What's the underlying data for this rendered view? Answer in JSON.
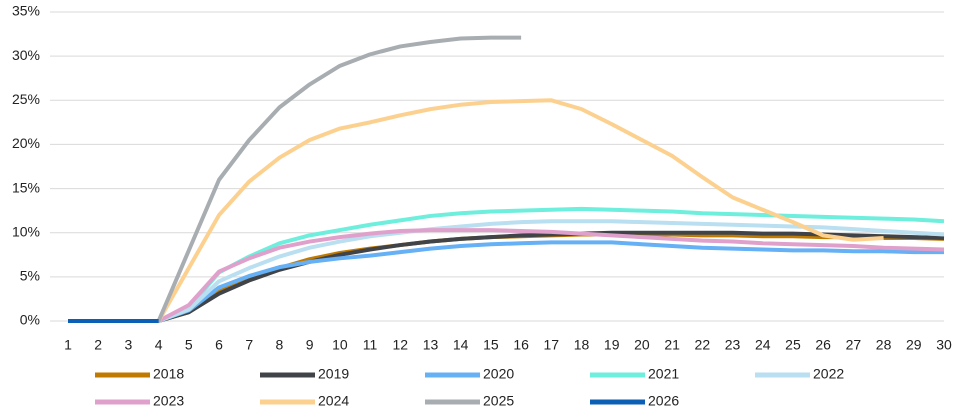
{
  "chart_data": {
    "type": "line",
    "x": [
      1,
      2,
      3,
      4,
      5,
      6,
      7,
      8,
      9,
      10,
      11,
      12,
      13,
      14,
      15,
      16,
      17,
      18,
      19,
      20,
      21,
      22,
      23,
      24,
      25,
      26,
      27,
      28,
      29,
      30
    ],
    "xlim": [
      1,
      30
    ],
    "ylim": [
      0,
      35
    ],
    "yticks": [
      {
        "value": 0,
        "label": "0%"
      },
      {
        "value": 5,
        "label": "5%"
      },
      {
        "value": 10,
        "label": "10%"
      },
      {
        "value": 15,
        "label": "15%"
      },
      {
        "value": 20,
        "label": "20%"
      },
      {
        "value": 25,
        "label": "25%"
      },
      {
        "value": 30,
        "label": "30%"
      },
      {
        "value": 35,
        "label": "35%"
      }
    ],
    "grid": true,
    "series": [
      {
        "name": "2018",
        "color": "#c07a00",
        "values": [
          0,
          0,
          0,
          0,
          1,
          3.3,
          4.8,
          6,
          7,
          7.7,
          8.2,
          8.6,
          9,
          9.3,
          9.5,
          9.6,
          9.7,
          9.8,
          9.8,
          9.8,
          9.8,
          9.7,
          9.7,
          9.6,
          9.6,
          9.5,
          9.5,
          9.4,
          9.4,
          9.3
        ]
      },
      {
        "name": "2019",
        "color": "#404448",
        "values": [
          0,
          0,
          0,
          0,
          1,
          3.1,
          4.6,
          5.8,
          6.7,
          7.5,
          8.1,
          8.6,
          9,
          9.3,
          9.5,
          9.7,
          9.8,
          9.9,
          10,
          10,
          10,
          10,
          10,
          9.9,
          9.9,
          9.8,
          9.7,
          9.6,
          9.5,
          9.4
        ]
      },
      {
        "name": "2020",
        "color": "#66b0f5",
        "values": [
          0,
          0,
          0,
          0,
          1.2,
          3.8,
          5.1,
          6.1,
          6.7,
          7.1,
          7.4,
          7.8,
          8.2,
          8.5,
          8.7,
          8.8,
          8.9,
          8.9,
          8.9,
          8.7,
          8.5,
          8.3,
          8.2,
          8.1,
          8,
          8,
          7.9,
          7.9,
          7.8,
          7.8
        ]
      },
      {
        "name": "2021",
        "color": "#6eeedd",
        "values": [
          0,
          0,
          0,
          0,
          1.5,
          5.5,
          7.3,
          8.8,
          9.7,
          10.3,
          10.9,
          11.4,
          11.9,
          12.2,
          12.4,
          12.5,
          12.6,
          12.7,
          12.6,
          12.5,
          12.4,
          12.2,
          12.1,
          12,
          11.9,
          11.8,
          11.7,
          11.6,
          11.5,
          11.3
        ]
      },
      {
        "name": "2022",
        "color": "#b9dff0",
        "values": [
          0,
          0,
          0,
          0,
          1.3,
          4.5,
          6,
          7.3,
          8.3,
          9,
          9.6,
          10,
          10.4,
          10.7,
          11,
          11.2,
          11.3,
          11.3,
          11.3,
          11.2,
          11.1,
          11,
          10.9,
          10.8,
          10.7,
          10.6,
          10.4,
          10.2,
          10,
          9.8
        ]
      },
      {
        "name": "2023",
        "color": "#e0a0cc",
        "values": [
          0,
          0,
          0,
          0,
          1.8,
          5.6,
          7.1,
          8.3,
          9,
          9.5,
          9.9,
          10.2,
          10.3,
          10.3,
          10.3,
          10.2,
          10.1,
          9.9,
          9.7,
          9.5,
          9.3,
          9.1,
          9,
          8.8,
          8.7,
          8.6,
          8.5,
          8.3,
          8.2,
          8.1
        ]
      },
      {
        "name": "2024",
        "color": "#fcd190",
        "values": [
          0,
          0,
          0,
          0,
          6,
          12,
          15.8,
          18.5,
          20.5,
          21.8,
          22.5,
          23.3,
          24,
          24.5,
          24.8,
          24.9,
          25,
          24,
          22.3,
          20.5,
          18.7,
          16.3,
          14,
          12.6,
          11.2,
          9.7,
          9.2,
          9.4,
          null,
          null
        ]
      },
      {
        "name": "2025",
        "color": "#a8adb2",
        "values": [
          0,
          0,
          0,
          0,
          8,
          16,
          20.5,
          24.2,
          26.8,
          28.9,
          30.2,
          31.1,
          31.6,
          32,
          32.1,
          32.1,
          null,
          null,
          null,
          null,
          null,
          null,
          null,
          null,
          null,
          null,
          null,
          null,
          null,
          null
        ]
      },
      {
        "name": "2026",
        "color": "#0b5fb5",
        "values": [
          0,
          0,
          0,
          0,
          null,
          null,
          null,
          null,
          null,
          null,
          null,
          null,
          null,
          null,
          null,
          null,
          null,
          null,
          null,
          null,
          null,
          null,
          null,
          null,
          null,
          null,
          null,
          null,
          null,
          null
        ]
      }
    ]
  }
}
